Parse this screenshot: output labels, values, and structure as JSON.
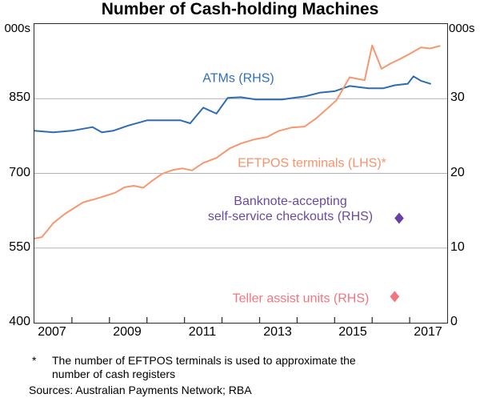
{
  "sources": "Sources: Australian Payments Network; RBA",
  "footnote": {
    "symbol": "*",
    "line1": "The number of EFTPOS terminals is used to approximate the",
    "line2": "number of cash registers"
  },
  "chart_data": {
    "type": "line",
    "title": "Number of Cash-holding Machines",
    "unit_left": "000s",
    "unit_right": "000s",
    "grid_color": "#b3b3b3",
    "lhs_axis": {
      "min": 400,
      "max": 1000,
      "ticks": [
        400,
        550,
        700,
        850
      ]
    },
    "rhs_axis": {
      "min": 0,
      "max": 40,
      "ticks": [
        0,
        10,
        20,
        30
      ]
    },
    "x_axis": {
      "min": 2007,
      "max": 2018,
      "tick_step": 1,
      "labels": [
        "2007",
        "2009",
        "2011",
        "2013",
        "2015",
        "2017"
      ]
    },
    "series": [
      {
        "key": "atms",
        "name": "ATMs (RHS)",
        "axis": "rhs",
        "color": "#2d6cb5",
        "points": [
          [
            2007.0,
            25.7
          ],
          [
            2007.5,
            25.5
          ],
          [
            2008.0,
            25.7
          ],
          [
            2008.55,
            26.2
          ],
          [
            2008.8,
            25.5
          ],
          [
            2009.1,
            25.7
          ],
          [
            2009.5,
            26.4
          ],
          [
            2010.0,
            27.1
          ],
          [
            2010.9,
            27.1
          ],
          [
            2011.15,
            26.7
          ],
          [
            2011.5,
            28.8
          ],
          [
            2011.85,
            28.0
          ],
          [
            2012.15,
            30.1
          ],
          [
            2012.5,
            30.2
          ],
          [
            2012.9,
            29.9
          ],
          [
            2013.6,
            29.9
          ],
          [
            2013.9,
            30.1
          ],
          [
            2014.2,
            30.3
          ],
          [
            2014.6,
            30.8
          ],
          [
            2015.0,
            31.0
          ],
          [
            2015.4,
            31.7
          ],
          [
            2015.9,
            31.4
          ],
          [
            2016.3,
            31.4
          ],
          [
            2016.6,
            31.8
          ],
          [
            2016.95,
            32.0
          ],
          [
            2017.1,
            33.0
          ],
          [
            2017.3,
            32.4
          ],
          [
            2017.55,
            32.0
          ]
        ]
      },
      {
        "key": "eftpos",
        "name": "EFTPOS terminals (LHS)*",
        "axis": "lhs",
        "color": "#f8976e",
        "points": [
          [
            2007.0,
            569
          ],
          [
            2007.2,
            572
          ],
          [
            2007.5,
            600
          ],
          [
            2007.8,
            618
          ],
          [
            2008.05,
            630
          ],
          [
            2008.3,
            642
          ],
          [
            2008.6,
            648
          ],
          [
            2008.9,
            655
          ],
          [
            2009.15,
            661
          ],
          [
            2009.4,
            672
          ],
          [
            2009.65,
            675
          ],
          [
            2009.9,
            671
          ],
          [
            2010.1,
            683
          ],
          [
            2010.4,
            699
          ],
          [
            2010.7,
            707
          ],
          [
            2010.95,
            710
          ],
          [
            2011.2,
            706
          ],
          [
            2011.5,
            721
          ],
          [
            2011.85,
            731
          ],
          [
            2012.2,
            750
          ],
          [
            2012.5,
            760
          ],
          [
            2012.85,
            768
          ],
          [
            2013.2,
            773
          ],
          [
            2013.5,
            785
          ],
          [
            2013.85,
            792
          ],
          [
            2014.2,
            794
          ],
          [
            2014.5,
            810
          ],
          [
            2014.85,
            833
          ],
          [
            2015.05,
            847
          ],
          [
            2015.4,
            893
          ],
          [
            2015.6,
            890
          ],
          [
            2015.8,
            887
          ],
          [
            2016.0,
            957
          ],
          [
            2016.25,
            910
          ],
          [
            2016.5,
            921
          ],
          [
            2016.75,
            930
          ],
          [
            2017.0,
            940
          ],
          [
            2017.3,
            953
          ],
          [
            2017.55,
            951
          ],
          [
            2017.8,
            956
          ]
        ]
      }
    ],
    "markers": [
      {
        "key": "banknote-sscos",
        "name": "Banknote-accepting self-service checkouts (RHS)",
        "label_line1": "Banknote-accepting",
        "label_line2": "self-service checkouts (RHS)",
        "axis": "rhs",
        "color": "#6a3fa5",
        "x": 2016.72,
        "value": 14
      },
      {
        "key": "teller-assist",
        "name": "Teller assist units (RHS)",
        "axis": "rhs",
        "color": "#f4747e",
        "x": 2016.6,
        "value": 3.5
      }
    ]
  }
}
